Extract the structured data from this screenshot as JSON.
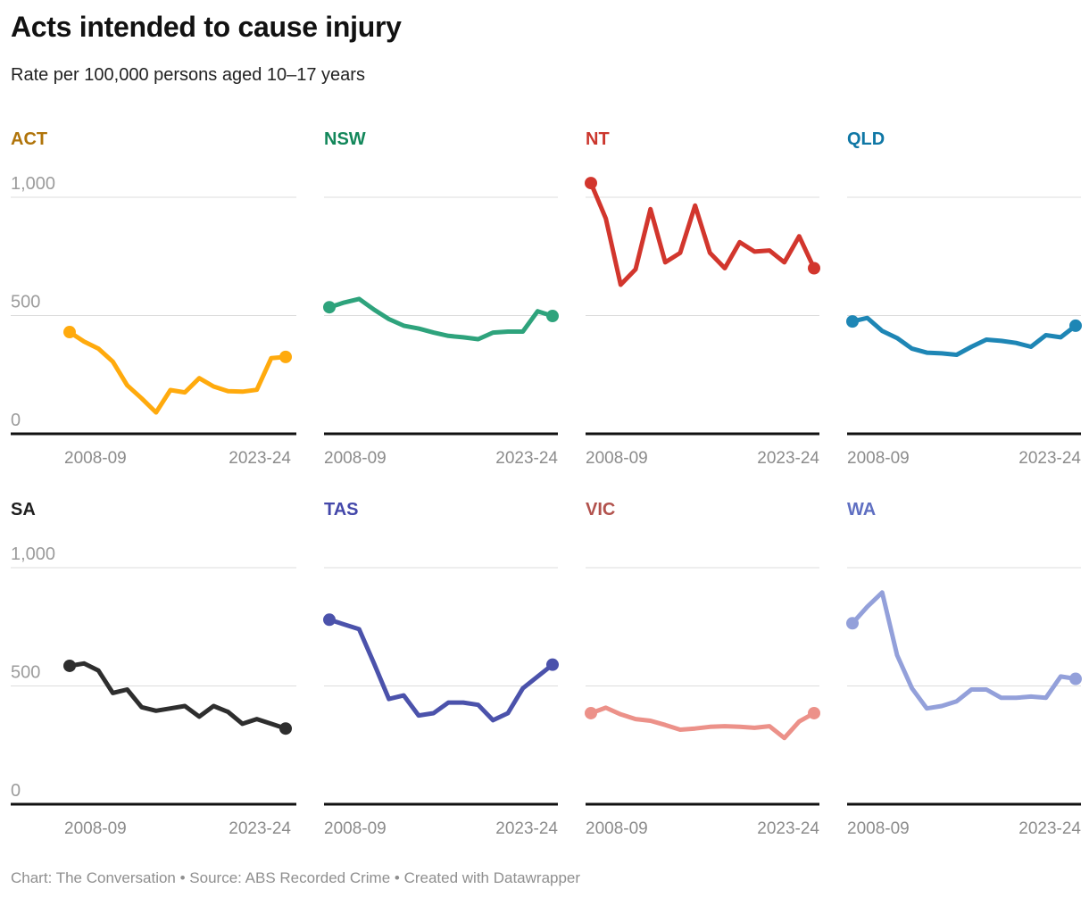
{
  "chart_data": {
    "type": "line",
    "layout": "small-multiples 2 rows x 4 columns",
    "title": "Acts intended to cause injury",
    "subtitle": "Rate per 100,000 persons aged 10–17 years",
    "x_tick_labels": [
      "2008-09",
      "2023-24"
    ],
    "n_points_per_series": 16,
    "y_ticks": [
      0,
      500,
      1000
    ],
    "y_tick_labels": [
      "0",
      "500",
      "1,000"
    ],
    "ylim": [
      0,
      1100
    ],
    "grid": "horizontal",
    "grid_color": "#dcdcdc",
    "axis_color": "#111111",
    "series": [
      {
        "name": "ACT",
        "label_color": "#B0740A",
        "line_color": "#FFAA0D",
        "values": [
          430,
          390,
          360,
          305,
          205,
          150,
          90,
          185,
          175,
          235,
          200,
          180,
          178,
          186,
          320,
          325
        ]
      },
      {
        "name": "NSW",
        "label_color": "#12875A",
        "line_color": "#2EA37C",
        "values": [
          535,
          555,
          570,
          525,
          485,
          457,
          445,
          428,
          414,
          408,
          400,
          428,
          432,
          432,
          518,
          498
        ]
      },
      {
        "name": "NT",
        "label_color": "#CB362D",
        "line_color": "#D2362D",
        "values": [
          1060,
          910,
          630,
          695,
          950,
          725,
          765,
          965,
          765,
          700,
          810,
          770,
          775,
          725,
          835,
          700
        ]
      },
      {
        "name": "QLD",
        "label_color": "#0F77A5",
        "line_color": "#1E86B5",
        "values": [
          475,
          490,
          435,
          405,
          360,
          343,
          340,
          334,
          368,
          398,
          393,
          384,
          368,
          417,
          408,
          457
        ]
      },
      {
        "name": "SA",
        "label_color": "#1F1F1F",
        "line_color": "#2E2E2E",
        "values": [
          585,
          595,
          565,
          470,
          485,
          410,
          395,
          405,
          415,
          370,
          415,
          390,
          340,
          360,
          340,
          320
        ]
      },
      {
        "name": "TAS",
        "label_color": "#4448AA",
        "line_color": "#4B52AB",
        "values": [
          780,
          760,
          740,
          595,
          445,
          460,
          375,
          385,
          430,
          430,
          420,
          355,
          385,
          490,
          540,
          590
        ]
      },
      {
        "name": "VIC",
        "label_color": "#B2524D",
        "line_color": "#EC9189",
        "values": [
          385,
          408,
          380,
          360,
          353,
          335,
          315,
          320,
          327,
          330,
          327,
          323,
          330,
          280,
          350,
          385
        ]
      },
      {
        "name": "WA",
        "label_color": "#5F6FC2",
        "line_color": "#93A0DA",
        "values": [
          765,
          835,
          895,
          630,
          490,
          405,
          415,
          435,
          485,
          485,
          450,
          450,
          455,
          450,
          540,
          530
        ]
      }
    ]
  },
  "footer": {
    "text": "Chart: The Conversation • Source: ABS Recorded Crime • Created with Datawrapper"
  }
}
